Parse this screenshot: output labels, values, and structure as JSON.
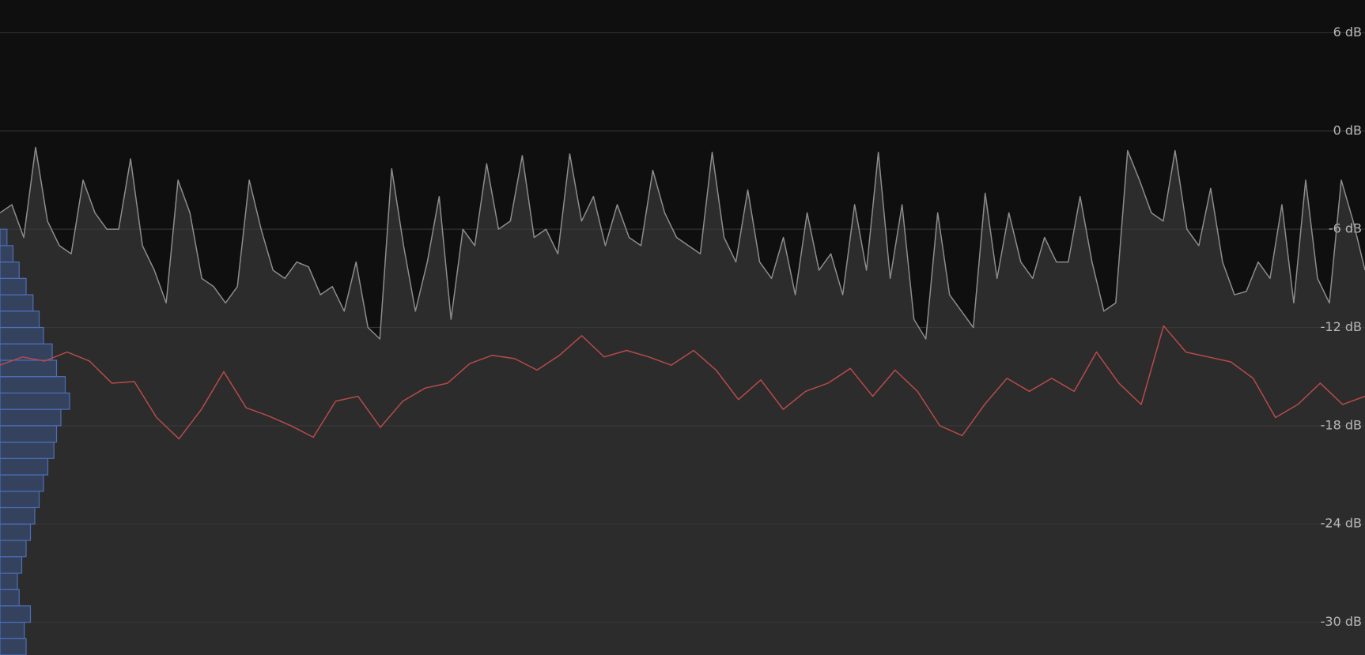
{
  "chart_data": {
    "type": "line",
    "ylim": [
      -32,
      8
    ],
    "yticks": [
      {
        "value": 6,
        "label": "6 dB"
      },
      {
        "value": 0,
        "label": "0 dB"
      },
      {
        "value": -6,
        "label": "-6 dB"
      },
      {
        "value": -12,
        "label": "-12 dB"
      },
      {
        "value": -18,
        "label": "-18 dB"
      },
      {
        "value": -24,
        "label": "-24 dB"
      },
      {
        "value": -30,
        "label": "-30 dB"
      }
    ],
    "grid": true,
    "series": [
      {
        "color": "#8c8c8c",
        "fill": "#2c2c2c",
        "values": [
          -5,
          -4.5,
          -6.5,
          -1,
          -5.5,
          -7,
          -7.5,
          -3,
          -5,
          -6,
          -6,
          -1.7,
          -7,
          -8.5,
          -10.5,
          -3,
          -5,
          -9,
          -9.5,
          -10.5,
          -9.5,
          -3,
          -6,
          -8.5,
          -9,
          -8,
          -8.3,
          -10,
          -9.5,
          -11,
          -8,
          -12,
          -12.7,
          -2.3,
          -7,
          -11,
          -8,
          -4,
          -11.5,
          -6,
          -7,
          -2,
          -6,
          -5.5,
          -1.5,
          -6.5,
          -6,
          -7.5,
          -1.4,
          -5.5,
          -4,
          -7,
          -4.5,
          -6.5,
          -7,
          -2.4,
          -5,
          -6.5,
          -7,
          -7.5,
          -1.3,
          -6.5,
          -8,
          -3.6,
          -8,
          -9,
          -6.5,
          -10,
          -5,
          -8.5,
          -7.5,
          -10,
          -4.5,
          -8.5,
          -1.3,
          -9,
          -4.5,
          -11.5,
          -12.7,
          -5,
          -10,
          -11,
          -12,
          -3.8,
          -9,
          -5,
          -8,
          -9,
          -6.5,
          -8,
          -8,
          -4,
          -8,
          -11,
          -10.5,
          -1.2,
          -3,
          -5,
          -5.5,
          -1.2,
          -6,
          -7,
          -3.5,
          -8,
          -10,
          -9.8,
          -8,
          -9,
          -4.5,
          -10.5,
          -3,
          -9,
          -10.5,
          -3,
          -5.5,
          -8.5
        ]
      },
      {
        "color": "#b84a4a",
        "values": [
          -14.3,
          -13.8,
          -14.05,
          -13.5,
          -14.05,
          -15.4,
          -15.3,
          -17.5,
          -18.8,
          -17.0,
          -14.7,
          -16.9,
          -17.4,
          -18.0,
          -18.7,
          -16.5,
          -16.2,
          -18.1,
          -16.5,
          -15.7,
          -15.4,
          -14.2,
          -13.7,
          -13.9,
          -14.6,
          -13.7,
          -12.5,
          -13.8,
          -13.4,
          -13.8,
          -14.3,
          -13.4,
          -14.6,
          -16.4,
          -15.2,
          -17.0,
          -15.9,
          -15.4,
          -14.5,
          -16.2,
          -14.6,
          -15.9,
          -18.0,
          -18.6,
          -16.7,
          -15.1,
          -15.9,
          -15.1,
          -15.9,
          -13.5,
          -15.4,
          -16.7,
          -11.9,
          -13.5,
          -13.8,
          -14.1,
          -15.1,
          -17.5,
          -16.7,
          -15.4,
          -16.7,
          -16.2
        ]
      }
    ],
    "histogram": {
      "color": "#4d6fb8",
      "fill": "#34425e",
      "bins": [
        -32,
        -31,
        -30,
        -29,
        -28,
        -27,
        -26,
        -25,
        -24,
        -23,
        -22,
        -21,
        -20,
        -19,
        -18,
        -17,
        -16,
        -15,
        -14,
        -13,
        -12,
        -11,
        -10,
        -9,
        -8,
        -7,
        -6
      ],
      "counts": [
        30,
        28,
        35,
        22,
        20,
        25,
        30,
        35,
        40,
        45,
        50,
        55,
        62,
        65,
        70,
        80,
        75,
        65,
        60,
        50,
        45,
        38,
        30,
        22,
        15,
        8
      ]
    }
  }
}
